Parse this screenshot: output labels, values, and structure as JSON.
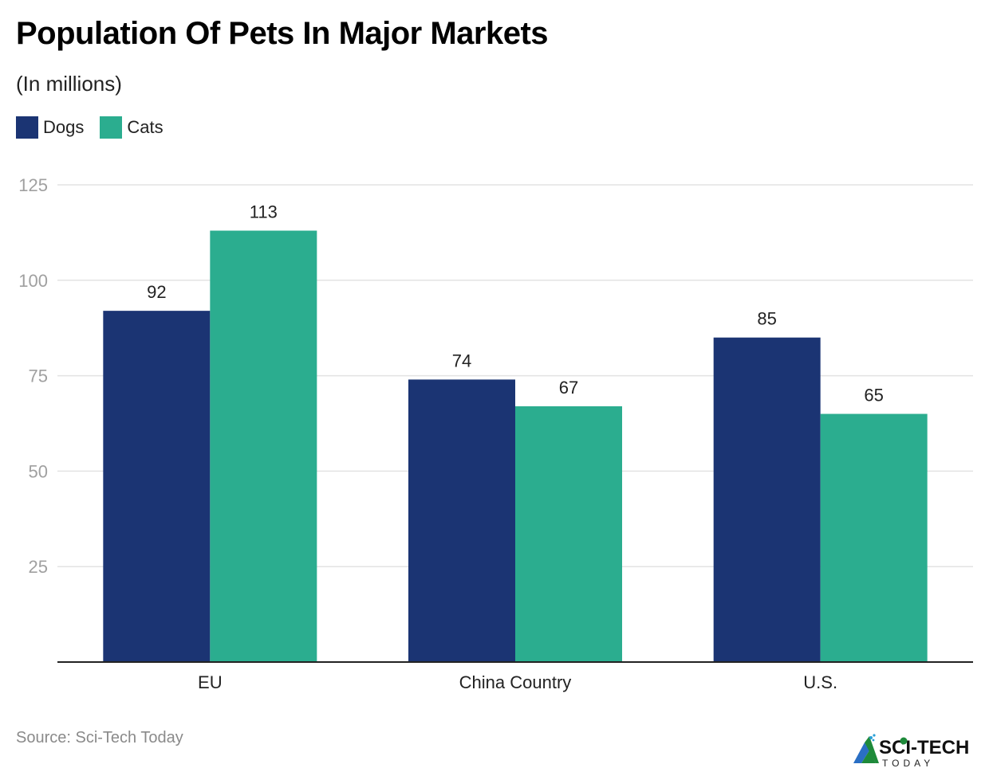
{
  "chart_data": {
    "type": "bar",
    "title": "Population Of Pets In Major Markets",
    "subtitle": "(In millions)",
    "xlabel": "",
    "ylabel": "",
    "categories": [
      "EU",
      "China Country",
      "U.S."
    ],
    "series": [
      {
        "name": "Dogs",
        "color": "#1b3473",
        "values": [
          92,
          74,
          85
        ]
      },
      {
        "name": "Cats",
        "color": "#2bad8f",
        "values": [
          113,
          67,
          65
        ]
      }
    ],
    "ylim": [
      0,
      125
    ],
    "yticks": [
      25,
      50,
      75,
      100,
      125
    ],
    "grid": true,
    "legend_position": "top-left",
    "data_labels": true
  },
  "footer": {
    "source": "Source: Sci-Tech Today",
    "logo_text": "SCI-TECH",
    "logo_subtext": "TODAY"
  }
}
